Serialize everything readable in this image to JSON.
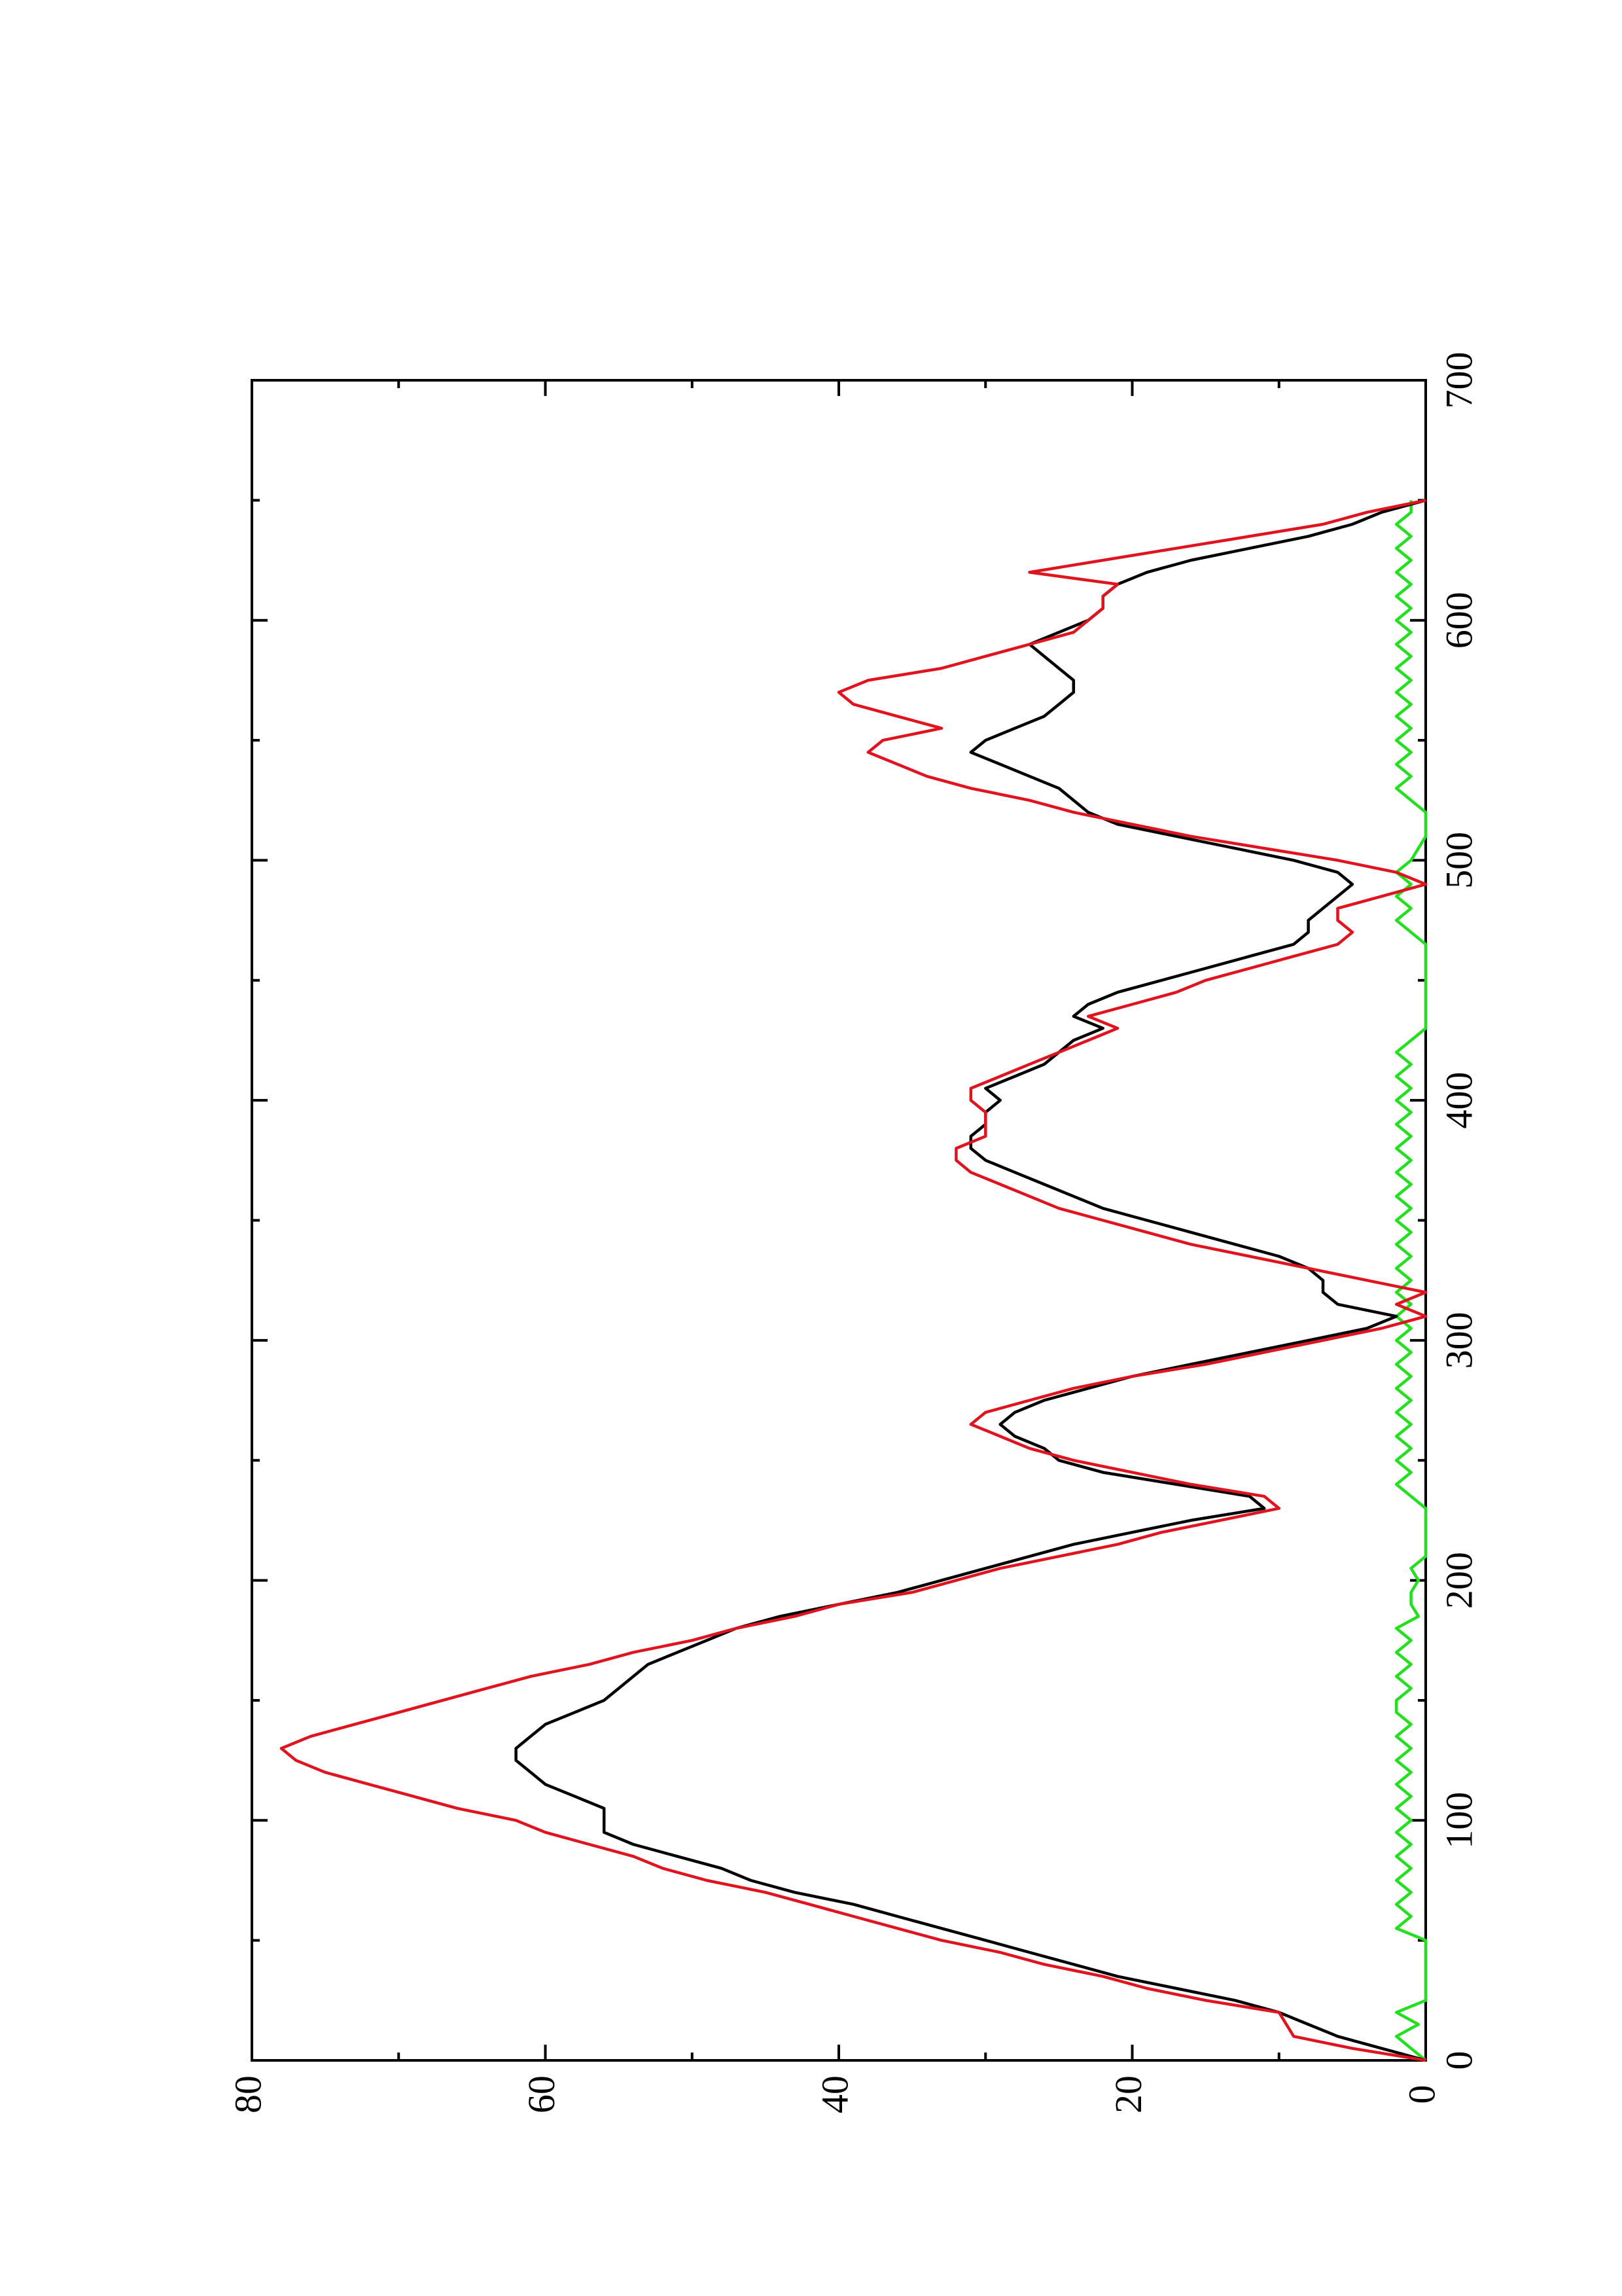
{
  "chart_data": {
    "type": "line",
    "x": [
      0,
      5,
      10,
      15,
      20,
      25,
      30,
      35,
      40,
      45,
      50,
      55,
      60,
      65,
      70,
      75,
      80,
      85,
      90,
      95,
      100,
      105,
      110,
      115,
      120,
      125,
      130,
      135,
      140,
      145,
      150,
      155,
      160,
      165,
      170,
      175,
      180,
      185,
      190,
      195,
      200,
      205,
      210,
      215,
      220,
      225,
      230,
      235,
      240,
      245,
      250,
      255,
      260,
      265,
      270,
      275,
      280,
      285,
      290,
      295,
      300,
      305,
      310,
      315,
      320,
      325,
      330,
      335,
      340,
      345,
      350,
      355,
      360,
      365,
      370,
      375,
      380,
      385,
      390,
      395,
      400,
      405,
      410,
      415,
      420,
      425,
      430,
      435,
      440,
      445,
      450,
      455,
      460,
      465,
      470,
      475,
      480,
      485,
      490,
      495,
      500,
      505,
      510,
      515,
      520,
      525,
      530,
      535,
      540,
      545,
      550,
      555,
      560,
      565,
      570,
      575,
      580,
      585,
      590,
      595,
      600,
      605,
      610,
      615,
      620,
      625,
      630,
      635,
      640,
      645,
      650
    ],
    "series": [
      {
        "color": "#000000",
        "values": [
          0,
          3,
          6,
          8,
          10,
          13,
          17,
          21,
          24,
          27,
          30,
          33,
          36,
          39,
          43,
          46,
          48,
          51,
          54,
          56,
          56,
          56,
          58,
          60,
          61,
          62,
          62,
          61,
          60,
          58,
          56,
          55,
          54,
          53,
          51,
          49,
          47,
          44,
          40,
          36,
          33,
          30,
          27,
          24,
          20,
          16,
          11,
          12,
          17,
          22,
          25,
          26,
          28,
          29,
          28,
          26,
          23,
          20,
          16,
          12,
          8,
          4,
          2,
          6,
          7,
          7,
          8,
          10,
          13,
          16,
          19,
          22,
          24,
          26,
          28,
          30,
          31,
          31,
          30,
          30,
          29,
          30,
          28,
          26,
          25,
          24,
          22,
          24,
          23,
          21,
          18,
          15,
          12,
          9,
          8,
          8,
          7,
          6,
          5,
          6,
          9,
          13,
          17,
          21,
          23,
          24,
          25,
          27,
          29,
          31,
          30,
          28,
          26,
          25,
          24,
          24,
          25,
          26,
          27,
          25,
          23,
          22,
          22,
          21,
          19,
          16,
          12,
          8,
          5,
          3,
          0
        ]
      },
      {
        "color": "#e0141e",
        "values": [
          0,
          5,
          9,
          9.5,
          10,
          15,
          19,
          22,
          26,
          29,
          33,
          36,
          39,
          42,
          45,
          49,
          52,
          54,
          57,
          60,
          62,
          66,
          69,
          72,
          75,
          77,
          78,
          76,
          73,
          70,
          67,
          64,
          61,
          57,
          54,
          50,
          47,
          43,
          40,
          35,
          32,
          29,
          25,
          21,
          18,
          14,
          10,
          11,
          16,
          20,
          24,
          27,
          29,
          31,
          30,
          27,
          24,
          20,
          15,
          11,
          7,
          3,
          0,
          2,
          0,
          4,
          8,
          12,
          16,
          19,
          22,
          25,
          27,
          29,
          31,
          32,
          32,
          30,
          30,
          30,
          31,
          31,
          29,
          27,
          25,
          23,
          21,
          23,
          20,
          17,
          15,
          12,
          9,
          6,
          5,
          6,
          6,
          3,
          0,
          2,
          6,
          11,
          16,
          20,
          24,
          27,
          31,
          34,
          36,
          38,
          37,
          33,
          36,
          39,
          40,
          38,
          33,
          30,
          27,
          24,
          23,
          22,
          22,
          21,
          27,
          22,
          17,
          12,
          7,
          4,
          0
        ]
      },
      {
        "color": "#22e01e",
        "values": [
          0,
          1,
          2,
          0.5,
          2,
          0,
          0,
          0,
          0,
          0,
          0,
          2,
          1,
          2,
          1,
          2,
          1,
          2,
          1,
          2,
          1,
          2,
          1,
          2,
          1,
          2,
          1,
          2,
          1,
          2,
          2,
          1,
          2,
          1,
          2,
          1,
          2,
          0.5,
          1,
          1,
          0.5,
          1,
          0,
          0,
          0,
          0,
          0,
          1,
          2,
          1,
          2,
          1,
          2,
          1,
          2,
          1,
          2,
          1,
          2,
          1,
          2,
          1,
          2,
          1,
          2,
          1,
          2,
          1,
          2,
          1,
          2,
          1,
          2,
          1,
          2,
          1,
          2,
          1,
          2,
          1,
          2,
          1,
          2,
          1,
          2,
          1,
          0,
          0,
          0,
          0,
          0,
          0,
          0,
          0,
          1,
          2,
          1,
          2,
          1,
          2,
          1,
          0.5,
          0,
          0,
          0,
          1,
          2,
          1,
          2,
          1,
          2,
          1,
          2,
          1,
          2,
          1,
          2,
          1,
          2,
          1,
          2,
          1,
          2,
          1,
          2,
          1,
          2,
          1,
          2,
          1,
          1
        ]
      }
    ],
    "xlim": [
      0,
      700
    ],
    "xticks": [
      0,
      100,
      200,
      300,
      400,
      500,
      600,
      700
    ],
    "ylim": [
      0,
      80
    ],
    "yticks": [
      0,
      20,
      40,
      60,
      80
    ]
  }
}
